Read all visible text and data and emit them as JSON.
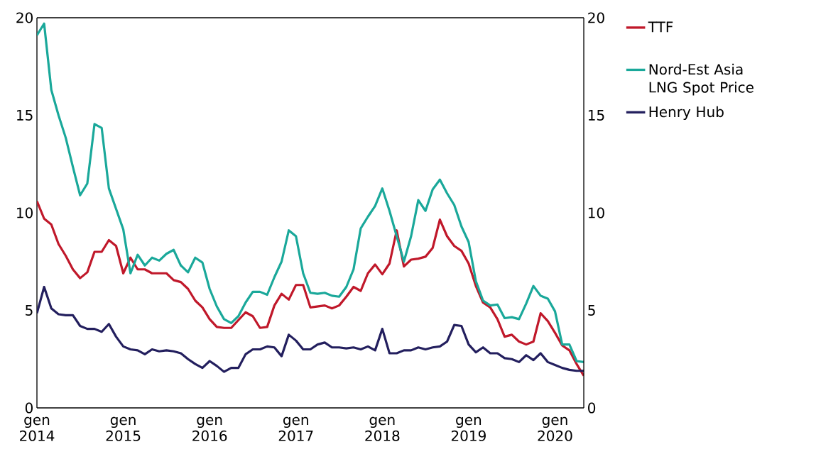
{
  "chart_data": {
    "type": "line",
    "legend": "right",
    "line_style": "solid",
    "x": [
      "2014-01",
      "2014-02",
      "2014-03",
      "2014-04",
      "2014-05",
      "2014-06",
      "2014-07",
      "2014-08",
      "2014-09",
      "2014-10",
      "2014-11",
      "2014-12",
      "2015-01",
      "2015-02",
      "2015-03",
      "2015-04",
      "2015-05",
      "2015-06",
      "2015-07",
      "2015-08",
      "2015-09",
      "2015-10",
      "2015-11",
      "2015-12",
      "2016-01",
      "2016-02",
      "2016-03",
      "2016-04",
      "2016-05",
      "2016-06",
      "2016-07",
      "2016-08",
      "2016-09",
      "2016-10",
      "2016-11",
      "2016-12",
      "2017-01",
      "2017-02",
      "2017-03",
      "2017-04",
      "2017-05",
      "2017-06",
      "2017-07",
      "2017-08",
      "2017-09",
      "2017-10",
      "2017-11",
      "2017-12",
      "2018-01",
      "2018-02",
      "2018-03",
      "2018-04",
      "2018-05",
      "2018-06",
      "2018-07",
      "2018-08",
      "2018-09",
      "2018-10",
      "2018-11",
      "2018-12",
      "2019-01",
      "2019-02",
      "2019-03",
      "2019-04",
      "2019-05",
      "2019-06",
      "2019-07",
      "2019-08",
      "2019-09",
      "2019-10",
      "2019-11",
      "2019-12",
      "2020-01",
      "2020-02",
      "2020-03",
      "2020-04",
      "2020-05"
    ],
    "series": [
      {
        "name": "TTF",
        "color": "#c0182a",
        "values": [
          10.6,
          9.7,
          9.4,
          8.4,
          7.8,
          7.1,
          6.65,
          6.95,
          8.0,
          8.0,
          8.6,
          8.3,
          6.9,
          7.7,
          7.1,
          7.1,
          6.9,
          6.9,
          6.9,
          6.55,
          6.45,
          6.1,
          5.5,
          5.15,
          4.55,
          4.15,
          4.1,
          4.1,
          4.5,
          4.9,
          4.7,
          4.1,
          4.15,
          5.25,
          5.85,
          5.55,
          6.3,
          6.3,
          5.15,
          5.2,
          5.25,
          5.1,
          5.25,
          5.7,
          6.2,
          6.0,
          6.9,
          7.35,
          6.85,
          7.4,
          9.1,
          7.25,
          7.6,
          7.65,
          7.75,
          8.2,
          9.65,
          8.8,
          8.3,
          8.05,
          7.4,
          6.25,
          5.4,
          5.15,
          4.55,
          3.65,
          3.75,
          3.4,
          3.25,
          3.4,
          4.85,
          4.45,
          3.85,
          3.2,
          2.95,
          2.25,
          1.65
        ]
      },
      {
        "name": "Nord-Est Asia LNG Spot Price",
        "color": "#1aa89a",
        "values": [
          19.1,
          19.7,
          16.3,
          15.0,
          13.85,
          12.35,
          10.9,
          11.5,
          14.55,
          14.35,
          11.25,
          10.2,
          9.15,
          6.9,
          7.85,
          7.3,
          7.7,
          7.55,
          7.9,
          8.1,
          7.3,
          6.95,
          7.7,
          7.45,
          6.1,
          5.2,
          4.55,
          4.35,
          4.7,
          5.4,
          5.95,
          5.95,
          5.8,
          6.7,
          7.5,
          9.1,
          8.8,
          6.9,
          5.9,
          5.85,
          5.9,
          5.75,
          5.7,
          6.2,
          7.1,
          9.2,
          9.8,
          10.35,
          11.25,
          10.1,
          8.8,
          7.5,
          8.8,
          10.65,
          10.1,
          11.2,
          11.7,
          11.0,
          10.4,
          9.3,
          8.5,
          6.5,
          5.5,
          5.25,
          5.3,
          4.6,
          4.65,
          4.55,
          5.35,
          6.25,
          5.75,
          5.6,
          4.95,
          3.25,
          3.25,
          2.4,
          2.35
        ]
      },
      {
        "name": "Henry Hub",
        "color": "#231f5e",
        "values": [
          4.85,
          6.2,
          5.1,
          4.8,
          4.75,
          4.75,
          4.2,
          4.05,
          4.05,
          3.9,
          4.3,
          3.65,
          3.15,
          3.0,
          2.95,
          2.75,
          3.0,
          2.9,
          2.95,
          2.9,
          2.8,
          2.5,
          2.25,
          2.05,
          2.4,
          2.15,
          1.85,
          2.05,
          2.05,
          2.75,
          3.0,
          3.0,
          3.15,
          3.1,
          2.65,
          3.75,
          3.45,
          3.0,
          3.0,
          3.25,
          3.35,
          3.1,
          3.1,
          3.05,
          3.1,
          3.0,
          3.15,
          2.95,
          4.05,
          2.8,
          2.8,
          2.95,
          2.95,
          3.1,
          3.0,
          3.1,
          3.15,
          3.4,
          4.25,
          4.2,
          3.25,
          2.85,
          3.1,
          2.8,
          2.8,
          2.55,
          2.5,
          2.35,
          2.7,
          2.45,
          2.8,
          2.35,
          2.2,
          2.05,
          1.95,
          1.9,
          1.9
        ]
      }
    ],
    "xlim": [
      "2014-01",
      "2020-05"
    ],
    "xticks": [
      {
        "value": "2014-01",
        "label": "gen 2014"
      },
      {
        "value": "2015-01",
        "label": "gen 2015"
      },
      {
        "value": "2016-01",
        "label": "gen 2016"
      },
      {
        "value": "2017-01",
        "label": "gen 2017"
      },
      {
        "value": "2018-01",
        "label": "gen 2018"
      },
      {
        "value": "2019-01",
        "label": "gen 2019"
      },
      {
        "value": "2020-01",
        "label": "gen 2020"
      }
    ],
    "ylim": [
      0,
      20
    ],
    "yticks": [
      0,
      5,
      10,
      15,
      20
    ],
    "y2lim": [
      0,
      20
    ],
    "y2ticks": [
      0,
      5,
      10,
      15,
      20
    ]
  }
}
